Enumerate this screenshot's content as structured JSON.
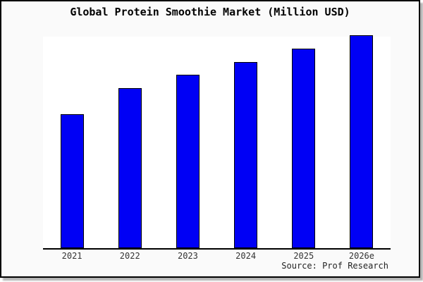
{
  "title": "Global Protein Smoothie Market (Million USD)",
  "source": "Source: Prof Research",
  "chart_data": {
    "type": "bar",
    "title": "Global Protein Smoothie Market (Million USD)",
    "categories": [
      "2021",
      "2022",
      "2023",
      "2024",
      "2025",
      "2026e"
    ],
    "values": [
      62.6,
      75.0,
      81.3,
      87.4,
      93.6,
      100.0
    ],
    "values_note": "No numeric y-axis is shown in the chart; values are bar heights estimated as percent of the tallest bar (2026e = 100)",
    "xlabel": "",
    "ylabel": "",
    "ylim": [
      0,
      100
    ],
    "grid": false,
    "legend": null,
    "annotations": [
      "Source: Prof Research"
    ],
    "bar_color": "#0000f5",
    "bar_border_color": "#000000",
    "plot_background": "#ffffff",
    "outer_background": "#fafafa",
    "frame_border_color": "#000000"
  }
}
